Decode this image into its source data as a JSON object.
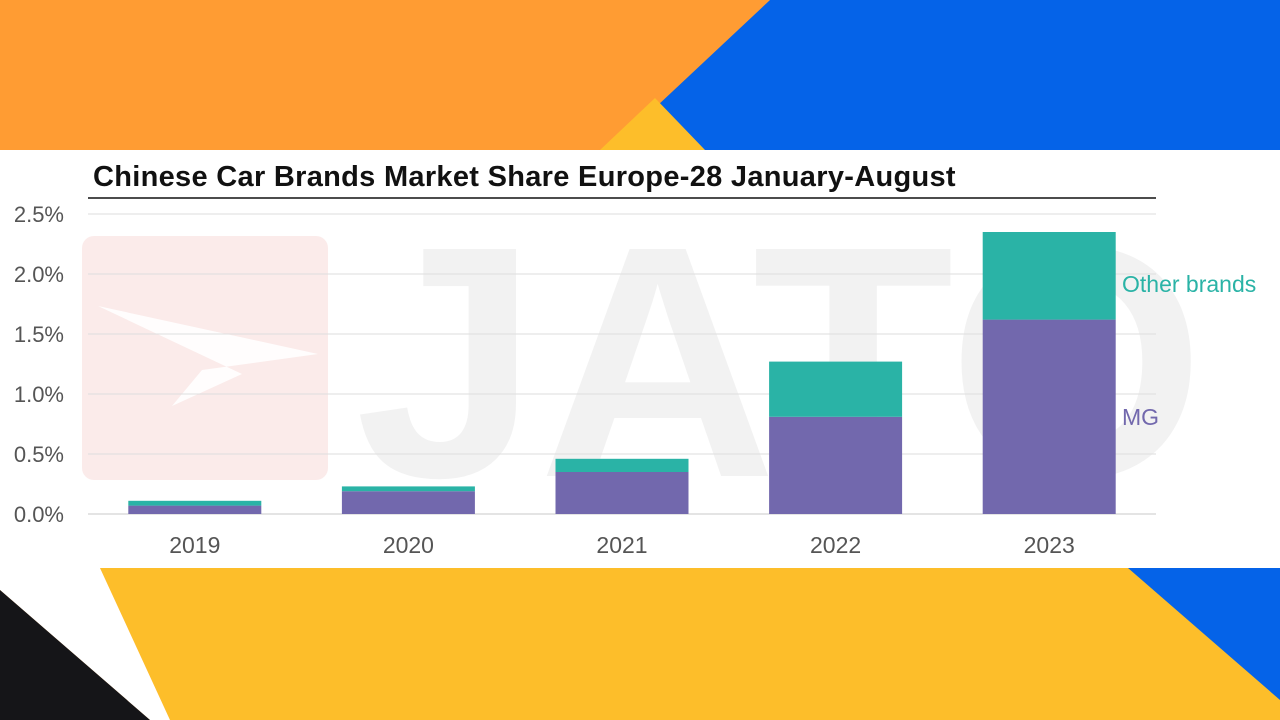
{
  "colors": {
    "orange": "#FF9C33",
    "blue": "#0563E8",
    "yellow": "#FDBE2A",
    "black": "#151518",
    "mg": "#7268AD",
    "other_brands": "#2AB3A6",
    "watermark_red": "#F4C7C3"
  },
  "watermark": {
    "text": "JATO"
  },
  "chart_data": {
    "type": "bar",
    "stacked": true,
    "title": "Chinese Car Brands Market Share Europe-28 January-August",
    "categories": [
      "2019",
      "2020",
      "2021",
      "2022",
      "2023"
    ],
    "series": [
      {
        "name": "MG",
        "values": [
          0.07,
          0.19,
          0.35,
          0.81,
          1.62
        ]
      },
      {
        "name": "Other brands",
        "values": [
          0.04,
          0.04,
          0.11,
          0.46,
          0.73
        ]
      }
    ],
    "y_ticks": [
      "0.0%",
      "0.5%",
      "1.0%",
      "1.5%",
      "2.0%",
      "2.5%"
    ],
    "ylim": [
      0,
      2.5
    ],
    "grid": true,
    "legend": "right, inline labels"
  }
}
